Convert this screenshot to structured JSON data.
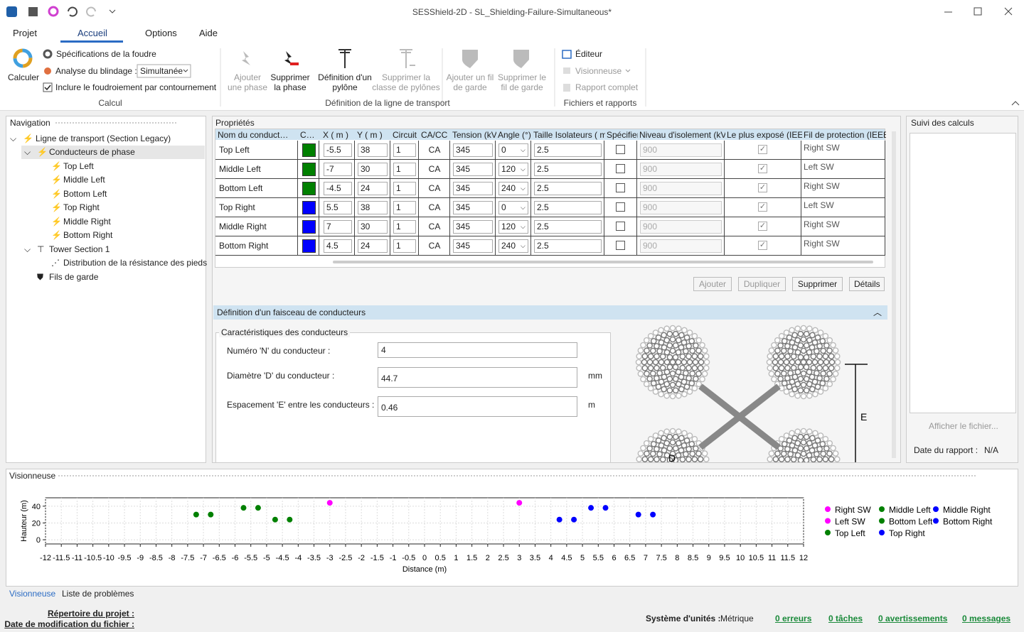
{
  "title_bar": {
    "title": "SESShield-2D - SL_Shielding-Failure-Simultaneous*"
  },
  "menu": [
    "Projet",
    "Accueil",
    "Options",
    "Aide"
  ],
  "ribbon": {
    "calcul": {
      "button": "Calculer",
      "lightning": "Spécifications de la foudre",
      "analysis": "Analyse du blindage :",
      "analysis_value": "Simultanée",
      "include": "Inclure le foudroiement par contournement",
      "include_checked": true,
      "group": "Calcul"
    },
    "transport": {
      "buttons": [
        "Ajouter une phase",
        "Supprimer la phase",
        "Définition d'un pylône",
        "Supprimer la classe de pylônes",
        "Ajouter un fil de garde",
        "Supprimer le fil de garde"
      ],
      "group": "Définition de la ligne de transport"
    },
    "files": {
      "items": [
        "Éditeur",
        "Visionneuse",
        "Rapport complet"
      ],
      "group": "Fichiers et rapports"
    }
  },
  "navigation": {
    "title": "Navigation",
    "tree": [
      "Ligne de transport (Section Legacy)",
      "Conducteurs de phase",
      "Top Left",
      "Middle Left",
      "Bottom Left",
      "Top Right",
      "Middle Right",
      "Bottom Right",
      "Tower Section 1",
      "Distribution de la résistance des pieds",
      "Fils de garde"
    ]
  },
  "properties": {
    "title": "Propriétés",
    "columns": [
      "Nom du conduct…",
      "C…",
      "X ( m )",
      "Y ( m )",
      "Circuit",
      "CA/CC",
      "Tension (kV)",
      "Angle (°)",
      "Taille Isolateurs ( m",
      "Spécifier",
      "Niveau d'isolement (kV)",
      "Le plus exposé (IEEE)",
      "Fil de protection (IEEE)"
    ],
    "rows": [
      {
        "name": "Top Left",
        "color": "#008000",
        "x": -5.5,
        "y": 38,
        "circuit": 1,
        "type": "CA",
        "voltage": 345,
        "angle": 0,
        "insulator": 2.5,
        "specify": false,
        "bil": 900,
        "exposed": true,
        "shield": "Right SW"
      },
      {
        "name": "Middle Left",
        "color": "#008000",
        "x": -7,
        "y": 30,
        "circuit": 1,
        "type": "CA",
        "voltage": 345,
        "angle": 120,
        "insulator": 2.5,
        "specify": false,
        "bil": 900,
        "exposed": true,
        "shield": "Left SW"
      },
      {
        "name": "Bottom Left",
        "color": "#008000",
        "x": -4.5,
        "y": 24,
        "circuit": 1,
        "type": "CA",
        "voltage": 345,
        "angle": 240,
        "insulator": 2.5,
        "specify": false,
        "bil": 900,
        "exposed": true,
        "shield": "Right SW"
      },
      {
        "name": "Top Right",
        "color": "#0000ff",
        "x": 5.5,
        "y": 38,
        "circuit": 1,
        "type": "CA",
        "voltage": 345,
        "angle": 0,
        "insulator": 2.5,
        "specify": false,
        "bil": 900,
        "exposed": true,
        "shield": "Left SW"
      },
      {
        "name": "Middle Right",
        "color": "#0000ff",
        "x": 7,
        "y": 30,
        "circuit": 1,
        "type": "CA",
        "voltage": 345,
        "angle": 120,
        "insulator": 2.5,
        "specify": false,
        "bil": 900,
        "exposed": true,
        "shield": "Right SW"
      },
      {
        "name": "Bottom Right",
        "color": "#0000ff",
        "x": 4.5,
        "y": 24,
        "circuit": 1,
        "type": "CA",
        "voltage": 345,
        "angle": 240,
        "insulator": 2.5,
        "specify": false,
        "bil": 900,
        "exposed": true,
        "shield": "Right SW"
      }
    ],
    "buttons": [
      "Ajouter",
      "Dupliquer",
      "Supprimer",
      "Détails"
    ]
  },
  "bundle": {
    "title": "Définition d'un faisceau de conducteurs",
    "group": "Caractéristiques des conducteurs",
    "fields": [
      {
        "label": "Numéro 'N' du conducteur :",
        "value": "4"
      },
      {
        "label": "Diamètre 'D' du conducteur :",
        "value": "44.7",
        "unit": "mm"
      },
      {
        "label": "Espacement 'E' entre les conducteurs :",
        "value": "0.46",
        "unit": "m"
      }
    ],
    "diagram_labels": [
      "E",
      "D"
    ]
  },
  "calc": {
    "title": "Suivi des calculs",
    "button": "Afficher le fichier...",
    "report_label": "Date du rapport :",
    "report_value": "N/A"
  },
  "viewer": {
    "title": "Visionneuse",
    "tabs": [
      "Visionneuse",
      "Liste de problèmes"
    ]
  },
  "chart_data": {
    "type": "scatter",
    "xlabel": "Distance (m)",
    "ylabel": "Hauteur (m)",
    "xlim": [
      -12,
      12
    ],
    "ylim": [
      -5,
      50
    ],
    "xticks": [
      -12,
      -11.5,
      -11,
      -10.5,
      -10,
      -9.5,
      -9,
      -8.5,
      -8,
      -7.5,
      -7,
      -6.5,
      -6,
      -5.5,
      -5,
      -4.5,
      -4,
      -3.5,
      -3,
      -2.5,
      -2,
      -1.5,
      -1,
      -0.5,
      0,
      0.5,
      1,
      1.5,
      2,
      2.5,
      3,
      3.5,
      4,
      4.5,
      5,
      5.5,
      6,
      6.5,
      7,
      7.5,
      8,
      8.5,
      9,
      9.5,
      10,
      10.5,
      11,
      11.5,
      12
    ],
    "yticks": [
      0,
      20,
      40
    ],
    "grid": true,
    "series": [
      {
        "name": "Right SW",
        "color": "#ff00ff",
        "x": [
          3
        ],
        "values": [
          44
        ]
      },
      {
        "name": "Left SW",
        "color": "#ff00ff",
        "x": [
          -3
        ],
        "values": [
          44
        ]
      },
      {
        "name": "Top Left",
        "color": "#008000",
        "x": [
          -5.73,
          -5.27
        ],
        "values": [
          38,
          38
        ]
      },
      {
        "name": "Middle Left",
        "color": "#008000",
        "x": [
          -7.23,
          -6.77
        ],
        "values": [
          30,
          30
        ]
      },
      {
        "name": "Bottom Left",
        "color": "#008000",
        "x": [
          -4.73,
          -4.27
        ],
        "values": [
          24,
          24
        ]
      },
      {
        "name": "Top Right",
        "color": "#0000ff",
        "x": [
          5.27,
          5.73
        ],
        "values": [
          38,
          38
        ]
      },
      {
        "name": "Middle Right",
        "color": "#0000ff",
        "x": [
          6.77,
          7.23
        ],
        "values": [
          30,
          30
        ]
      },
      {
        "name": "Bottom Right",
        "color": "#0000ff",
        "x": [
          4.27,
          4.73
        ],
        "values": [
          24,
          24
        ]
      }
    ]
  },
  "status": {
    "project_dir": "Répertoire du projet :",
    "modified": "Date de modification du fichier :",
    "units_label": "Système d'unités :",
    "units": "Métrique",
    "links": [
      "0 erreurs",
      "0 tâches",
      "0 avertissements",
      "0 messages"
    ]
  }
}
